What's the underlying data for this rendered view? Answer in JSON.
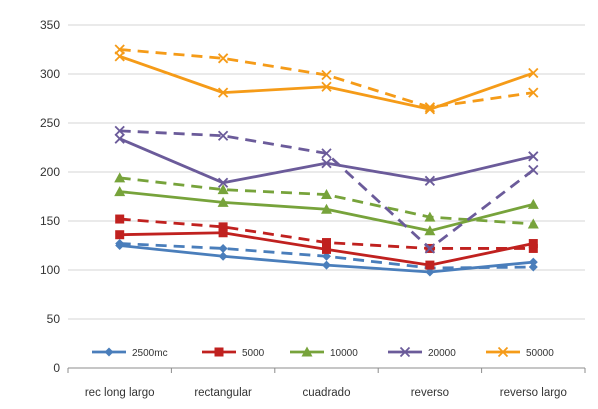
{
  "chart_data": {
    "type": "line",
    "categories": [
      "rec long largo",
      "rectangular",
      "cuadrado",
      "reverso",
      "reverso largo"
    ],
    "ylim": [
      0,
      350
    ],
    "yticks": [
      0,
      50,
      100,
      150,
      200,
      250,
      300,
      350
    ],
    "grid": true,
    "legend_position": "bottom-inside",
    "legend": [
      "2500mc",
      "5000",
      "10000",
      "20000",
      "50000"
    ],
    "series": [
      {
        "name": "2500mc",
        "color": "#4a7ebb",
        "marker": "diamond",
        "solid": [
          125,
          114,
          105,
          98,
          108
        ],
        "dashed": [
          127,
          122,
          114,
          102,
          103
        ]
      },
      {
        "name": "5000",
        "color": "#c0211f",
        "marker": "square",
        "solid": [
          136,
          138,
          121,
          105,
          127
        ],
        "dashed": [
          152,
          144,
          128,
          122,
          122
        ]
      },
      {
        "name": "10000",
        "color": "#77a33b",
        "marker": "triangle",
        "solid": [
          180,
          169,
          162,
          140,
          167
        ],
        "dashed": [
          194,
          182,
          177,
          154,
          147
        ]
      },
      {
        "name": "20000",
        "color": "#6b5b9a",
        "marker": "x",
        "solid": [
          234,
          189,
          209,
          191,
          216
        ],
        "dashed": [
          242,
          237,
          219,
          122,
          202
        ]
      },
      {
        "name": "50000",
        "color": "#f59b18",
        "marker": "x",
        "solid": [
          318,
          281,
          287,
          264,
          301
        ],
        "dashed": [
          325,
          316,
          299,
          266,
          281
        ]
      }
    ]
  }
}
